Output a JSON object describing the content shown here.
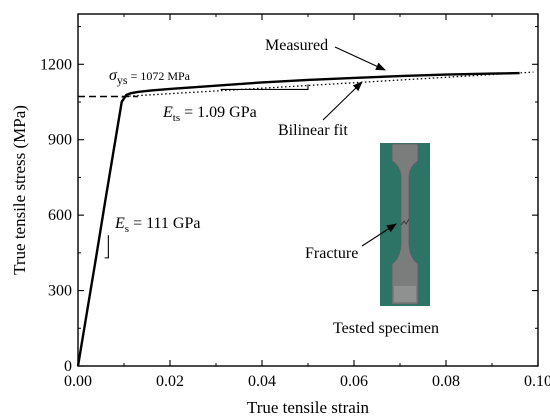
{
  "chart_data": {
    "type": "line",
    "xlabel": "True tensile strain",
    "ylabel": "True tensile stress (MPa)",
    "xlim": [
      0.0,
      0.1
    ],
    "ylim": [
      0,
      1400
    ],
    "xticks": [
      "0.00",
      "0.02",
      "0.04",
      "0.06",
      "0.08",
      "0.10"
    ],
    "yticks": [
      "0",
      "300",
      "600",
      "900",
      "1200"
    ],
    "grid": false,
    "series": [
      {
        "name": "Measured",
        "style": "solid",
        "color": "#000000",
        "x": [
          0.0,
          0.002,
          0.004,
          0.006,
          0.008,
          0.0095,
          0.0105,
          0.0115,
          0.013,
          0.016,
          0.02,
          0.03,
          0.04,
          0.05,
          0.06,
          0.07,
          0.08,
          0.09,
          0.096
        ],
        "y": [
          0,
          220,
          440,
          665,
          885,
          1050,
          1078,
          1085,
          1090,
          1096,
          1102,
          1115,
          1128,
          1138,
          1146,
          1153,
          1159,
          1163,
          1165
        ]
      },
      {
        "name": "Bilinear fit",
        "style": "dotted",
        "color": "#000000",
        "x": [
          0.0,
          0.00966,
          0.099
        ],
        "y": [
          0,
          1072,
          1169
        ]
      },
      {
        "style": "dashed",
        "color": "#000000",
        "x": [
          0.0,
          0.013
        ],
        "y": [
          1072,
          1072
        ]
      }
    ],
    "annotations": {
      "sigma_symbol": "σ",
      "sigma_sub": "ys",
      "sigma_value": " = 1072 MPa",
      "ets_symbol": "E",
      "ets_sub": "ts",
      "ets_value": " = 1.09 GPa",
      "es_symbol": "E",
      "es_sub": "s",
      "es_value": " = 111 GPa",
      "measured_label": "Measured",
      "bilinear_label": "Bilinear fit",
      "fracture_label": "Fracture",
      "specimen_label": "Tested specimen"
    },
    "slope_triangles": [
      {
        "which": "elastic",
        "x": [
          0.0058,
          0.0066
        ],
        "y": [
          430,
          520
        ]
      },
      {
        "which": "hardening",
        "x": [
          0.031,
          0.05
        ],
        "y": [
          1100,
          1120
        ]
      }
    ]
  },
  "colors": {
    "photo_bg": "#2d7466",
    "specimen": "#7a7c7c"
  }
}
